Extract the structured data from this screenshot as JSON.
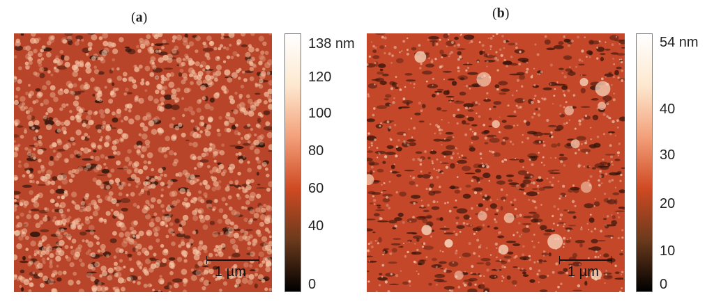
{
  "panels": [
    {
      "label": "a",
      "scale_bar": "1 µm",
      "colorbar": {
        "top_label": "138 nm",
        "ticks": [
          "120",
          "100",
          "80",
          "60",
          "40",
          "0"
        ],
        "stops": [
          "#000000",
          "#6b3a1c",
          "#cf4a23",
          "#f3a07a",
          "#fde8cf",
          "#ffffff"
        ]
      },
      "image_colors": {
        "base": "#b8452a",
        "dark": "#2a120a",
        "bright": "#f6c6a6"
      }
    },
    {
      "label": "b",
      "scale_bar": "1 µm",
      "colorbar": {
        "top_label": "54 nm",
        "ticks": [
          "40",
          "30",
          "20",
          "10",
          "0"
        ],
        "stops": [
          "#000000",
          "#6b3a1c",
          "#cf4a23",
          "#f3a07a",
          "#fde8cf",
          "#ffffff"
        ]
      },
      "image_colors": {
        "base": "#c4472a",
        "dark": "#3a160b",
        "bright": "#f7d3b9"
      }
    }
  ]
}
